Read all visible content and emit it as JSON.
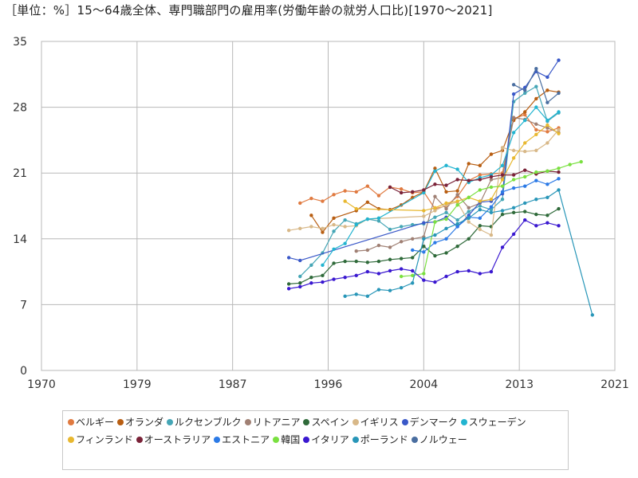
{
  "chart_data": {
    "type": "line",
    "title": "［単位：%］15～64歳全体、専門職部門の雇用率(労働年齢の就労人口比)[1970～2021]",
    "xlabel": "",
    "ylabel": "",
    "xlim": [
      1970,
      2021
    ],
    "ylim": [
      0,
      35
    ],
    "x_ticks": [
      "1970",
      "1979",
      "1987",
      "1996",
      "2004",
      "2013",
      "2021"
    ],
    "y_ticks": [
      "0",
      "7",
      "14",
      "21",
      "28",
      "35"
    ],
    "grid": true,
    "legend_position": "bottom",
    "series": [
      {
        "name": "ベルギー",
        "color": "#e07a40",
        "points": [
          [
            1993,
            17.8
          ],
          [
            1994,
            18.3
          ],
          [
            1995,
            18.0
          ],
          [
            1996,
            18.7
          ],
          [
            1997,
            19.1
          ],
          [
            1998,
            19.0
          ],
          [
            1999,
            19.6
          ],
          [
            2000,
            18.6
          ],
          [
            2001,
            19.5
          ],
          [
            2002,
            19.3
          ],
          [
            2003,
            18.9
          ],
          [
            2004,
            19.0
          ],
          [
            2005,
            17.2
          ],
          [
            2006,
            17.5
          ],
          [
            2007,
            18.5
          ],
          [
            2008,
            20.2
          ],
          [
            2009,
            20.8
          ],
          [
            2010,
            20.9
          ],
          [
            2011,
            21.0
          ],
          [
            2012,
            26.8
          ],
          [
            2013,
            27.2
          ],
          [
            2014,
            25.6
          ],
          [
            2015,
            25.4
          ],
          [
            2016,
            25.8
          ]
        ]
      },
      {
        "name": "オランダ",
        "color": "#b85e12",
        "points": [
          [
            1994,
            16.5
          ],
          [
            1995,
            14.7
          ],
          [
            1996,
            16.2
          ],
          [
            1998,
            17.0
          ],
          [
            1999,
            17.9
          ],
          [
            2000,
            17.2
          ],
          [
            2001,
            17.1
          ],
          [
            2002,
            17.6
          ],
          [
            2003,
            18.4
          ],
          [
            2004,
            19.0
          ],
          [
            2005,
            21.5
          ],
          [
            2006,
            19.0
          ],
          [
            2007,
            19.1
          ],
          [
            2008,
            22.0
          ],
          [
            2009,
            21.8
          ],
          [
            2010,
            23.0
          ],
          [
            2011,
            23.4
          ],
          [
            2012,
            26.6
          ],
          [
            2013,
            27.5
          ],
          [
            2014,
            28.9
          ],
          [
            2015,
            29.8
          ],
          [
            2016,
            29.6
          ]
        ]
      },
      {
        "name": "ルクセンブルク",
        "color": "#45a6b6",
        "points": [
          [
            1993,
            10.0
          ],
          [
            1994,
            11.2
          ],
          [
            1995,
            12.5
          ],
          [
            1996,
            14.8
          ],
          [
            1997,
            16.0
          ],
          [
            1998,
            15.6
          ],
          [
            1999,
            16.1
          ],
          [
            2000,
            15.9
          ],
          [
            2001,
            15.0
          ],
          [
            2002,
            15.3
          ],
          [
            2003,
            15.5
          ],
          [
            2004,
            15.6
          ],
          [
            2005,
            16.3
          ],
          [
            2006,
            16.8
          ],
          [
            2007,
            16.0
          ],
          [
            2008,
            16.9
          ],
          [
            2009,
            17.5
          ],
          [
            2010,
            17.1
          ],
          [
            2011,
            18.2
          ],
          [
            2012,
            28.6
          ],
          [
            2013,
            29.5
          ],
          [
            2014,
            30.2
          ],
          [
            2015,
            26.5
          ],
          [
            2016,
            27.4
          ]
        ]
      },
      {
        "name": "リトアニア",
        "color": "#a08074",
        "points": [
          [
            1998,
            12.7
          ],
          [
            1999,
            12.8
          ],
          [
            2000,
            13.3
          ],
          [
            2001,
            13.1
          ],
          [
            2002,
            13.7
          ],
          [
            2003,
            14.0
          ],
          [
            2004,
            14.2
          ],
          [
            2005,
            18.5
          ],
          [
            2006,
            17.2
          ],
          [
            2007,
            18.7
          ],
          [
            2008,
            17.3
          ],
          [
            2009,
            17.8
          ],
          [
            2010,
            20.3
          ],
          [
            2011,
            20.5
          ],
          [
            2012,
            26.9
          ],
          [
            2013,
            26.7
          ],
          [
            2014,
            26.2
          ],
          [
            2015,
            25.8
          ],
          [
            2016,
            25.3
          ]
        ]
      },
      {
        "name": "スペイン",
        "color": "#2f6a3a",
        "points": [
          [
            1992,
            9.2
          ],
          [
            1993,
            9.3
          ],
          [
            1994,
            9.9
          ],
          [
            1995,
            10.1
          ],
          [
            1996,
            11.4
          ],
          [
            1997,
            11.6
          ],
          [
            1998,
            11.6
          ],
          [
            1999,
            11.5
          ],
          [
            2000,
            11.6
          ],
          [
            2001,
            11.8
          ],
          [
            2002,
            11.9
          ],
          [
            2003,
            12.0
          ],
          [
            2004,
            13.2
          ],
          [
            2005,
            12.2
          ],
          [
            2006,
            12.5
          ],
          [
            2007,
            13.2
          ],
          [
            2008,
            14.0
          ],
          [
            2009,
            15.4
          ],
          [
            2010,
            15.3
          ],
          [
            2011,
            16.6
          ],
          [
            2012,
            16.8
          ],
          [
            2013,
            16.9
          ],
          [
            2014,
            16.6
          ],
          [
            2015,
            16.5
          ],
          [
            2016,
            17.2
          ]
        ]
      },
      {
        "name": "イギリス",
        "color": "#d8b888",
        "points": [
          [
            1992,
            14.9
          ],
          [
            1993,
            15.1
          ],
          [
            1994,
            15.3
          ],
          [
            1995,
            15.1
          ],
          [
            1996,
            15.5
          ],
          [
            1997,
            15.3
          ],
          [
            1998,
            15.4
          ],
          [
            1999,
            16.1
          ],
          [
            2004,
            16.4
          ],
          [
            2005,
            17.0
          ],
          [
            2006,
            17.6
          ],
          [
            2007,
            17.9
          ],
          [
            2008,
            15.8
          ],
          [
            2009,
            15.0
          ],
          [
            2010,
            14.4
          ],
          [
            2011,
            23.7
          ],
          [
            2012,
            23.4
          ],
          [
            2013,
            23.3
          ],
          [
            2014,
            23.4
          ],
          [
            2015,
            24.2
          ],
          [
            2016,
            25.6
          ]
        ]
      },
      {
        "name": "デンマーク",
        "color": "#3a58c8",
        "points": [
          [
            1992,
            12.0
          ],
          [
            1993,
            11.7
          ],
          [
            2004,
            15.7
          ],
          [
            2005,
            15.8
          ],
          [
            2006,
            16.3
          ],
          [
            2007,
            15.3
          ],
          [
            2008,
            16.5
          ],
          [
            2009,
            17.9
          ],
          [
            2010,
            18.0
          ],
          [
            2011,
            18.8
          ],
          [
            2012,
            29.4
          ],
          [
            2013,
            30.1
          ],
          [
            2014,
            31.8
          ],
          [
            2015,
            31.2
          ],
          [
            2016,
            33.0
          ]
        ]
      },
      {
        "name": "スウェーデン",
        "color": "#22b4d0",
        "points": [
          [
            1995,
            11.2
          ],
          [
            1996,
            12.9
          ],
          [
            1997,
            13.5
          ],
          [
            1998,
            15.5
          ],
          [
            1999,
            16.1
          ],
          [
            2000,
            16.2
          ],
          [
            2004,
            18.9
          ],
          [
            2005,
            21.2
          ],
          [
            2006,
            21.8
          ],
          [
            2007,
            21.4
          ],
          [
            2008,
            20.0
          ],
          [
            2009,
            20.5
          ],
          [
            2010,
            20.8
          ],
          [
            2011,
            21.8
          ],
          [
            2012,
            25.3
          ],
          [
            2013,
            26.6
          ],
          [
            2014,
            28.0
          ],
          [
            2015,
            26.6
          ],
          [
            2016,
            27.5
          ]
        ]
      },
      {
        "name": "フィンランド",
        "color": "#e8b830",
        "points": [
          [
            1997,
            18.0
          ],
          [
            1998,
            17.2
          ],
          [
            2004,
            17.0
          ],
          [
            2005,
            17.3
          ],
          [
            2006,
            17.8
          ],
          [
            2007,
            18.0
          ],
          [
            2008,
            18.4
          ],
          [
            2009,
            18.0
          ],
          [
            2010,
            18.2
          ],
          [
            2011,
            20.3
          ],
          [
            2012,
            22.6
          ],
          [
            2013,
            24.2
          ],
          [
            2014,
            25.1
          ],
          [
            2015,
            26.1
          ],
          [
            2016,
            25.2
          ]
        ]
      },
      {
        "name": "オーストラリア",
        "color": "#7a2238",
        "points": [
          [
            2001,
            19.5
          ],
          [
            2002,
            18.9
          ],
          [
            2003,
            19.0
          ],
          [
            2004,
            19.2
          ],
          [
            2005,
            19.8
          ],
          [
            2006,
            19.7
          ],
          [
            2007,
            20.3
          ],
          [
            2008,
            20.2
          ],
          [
            2009,
            20.3
          ],
          [
            2010,
            20.6
          ],
          [
            2011,
            20.8
          ],
          [
            2012,
            20.8
          ],
          [
            2013,
            21.3
          ],
          [
            2014,
            20.9
          ],
          [
            2015,
            21.2
          ],
          [
            2016,
            21.1
          ]
        ]
      },
      {
        "name": "エストニア",
        "color": "#2c7ae6",
        "points": [
          [
            2003,
            12.8
          ],
          [
            2004,
            12.6
          ],
          [
            2005,
            13.6
          ],
          [
            2006,
            14.0
          ],
          [
            2007,
            15.3
          ],
          [
            2008,
            16.3
          ],
          [
            2009,
            16.2
          ],
          [
            2010,
            17.4
          ],
          [
            2011,
            19.0
          ],
          [
            2012,
            19.4
          ],
          [
            2013,
            19.6
          ],
          [
            2014,
            20.2
          ],
          [
            2015,
            19.8
          ],
          [
            2016,
            20.4
          ]
        ]
      },
      {
        "name": "韓国",
        "color": "#7ae040",
        "points": [
          [
            2002,
            10.0
          ],
          [
            2003,
            10.1
          ],
          [
            2004,
            10.3
          ],
          [
            2005,
            15.8
          ],
          [
            2006,
            16.1
          ],
          [
            2007,
            17.6
          ],
          [
            2008,
            18.4
          ],
          [
            2009,
            19.2
          ],
          [
            2010,
            19.5
          ],
          [
            2011,
            19.6
          ],
          [
            2012,
            20.3
          ],
          [
            2013,
            20.6
          ],
          [
            2014,
            21.1
          ],
          [
            2015,
            21.2
          ],
          [
            2016,
            21.5
          ],
          [
            2017,
            21.9
          ],
          [
            2018,
            22.2
          ]
        ]
      },
      {
        "name": "イタリア",
        "color": "#3a18d0",
        "points": [
          [
            1992,
            8.7
          ],
          [
            1993,
            8.9
          ],
          [
            1994,
            9.3
          ],
          [
            1995,
            9.4
          ],
          [
            1996,
            9.7
          ],
          [
            1997,
            9.9
          ],
          [
            1998,
            10.1
          ],
          [
            1999,
            10.5
          ],
          [
            2000,
            10.3
          ],
          [
            2001,
            10.6
          ],
          [
            2002,
            10.8
          ],
          [
            2003,
            10.6
          ],
          [
            2004,
            9.6
          ],
          [
            2005,
            9.4
          ],
          [
            2006,
            10.0
          ],
          [
            2007,
            10.5
          ],
          [
            2008,
            10.6
          ],
          [
            2009,
            10.3
          ],
          [
            2010,
            10.5
          ],
          [
            2011,
            13.1
          ],
          [
            2012,
            14.5
          ],
          [
            2013,
            16.0
          ],
          [
            2014,
            15.4
          ],
          [
            2015,
            15.7
          ],
          [
            2016,
            15.4
          ]
        ]
      },
      {
        "name": "ポーランド",
        "color": "#2896b8",
        "points": [
          [
            1997,
            7.9
          ],
          [
            1998,
            8.1
          ],
          [
            1999,
            7.9
          ],
          [
            2000,
            8.6
          ],
          [
            2001,
            8.5
          ],
          [
            2002,
            8.8
          ],
          [
            2003,
            9.3
          ],
          [
            2004,
            14.0
          ],
          [
            2005,
            14.4
          ],
          [
            2006,
            15.1
          ],
          [
            2007,
            15.6
          ],
          [
            2008,
            16.2
          ],
          [
            2009,
            17.1
          ],
          [
            2010,
            16.8
          ],
          [
            2011,
            17.0
          ],
          [
            2012,
            17.3
          ],
          [
            2013,
            17.8
          ],
          [
            2014,
            18.2
          ],
          [
            2015,
            18.4
          ],
          [
            2016,
            19.2
          ],
          [
            2019,
            5.9
          ]
        ]
      },
      {
        "name": "ノルウェー",
        "color": "#4a6ea0",
        "points": [
          [
            2012,
            30.4
          ],
          [
            2013,
            29.8
          ],
          [
            2014,
            32.1
          ],
          [
            2015,
            28.5
          ],
          [
            2016,
            29.5
          ]
        ]
      }
    ]
  }
}
